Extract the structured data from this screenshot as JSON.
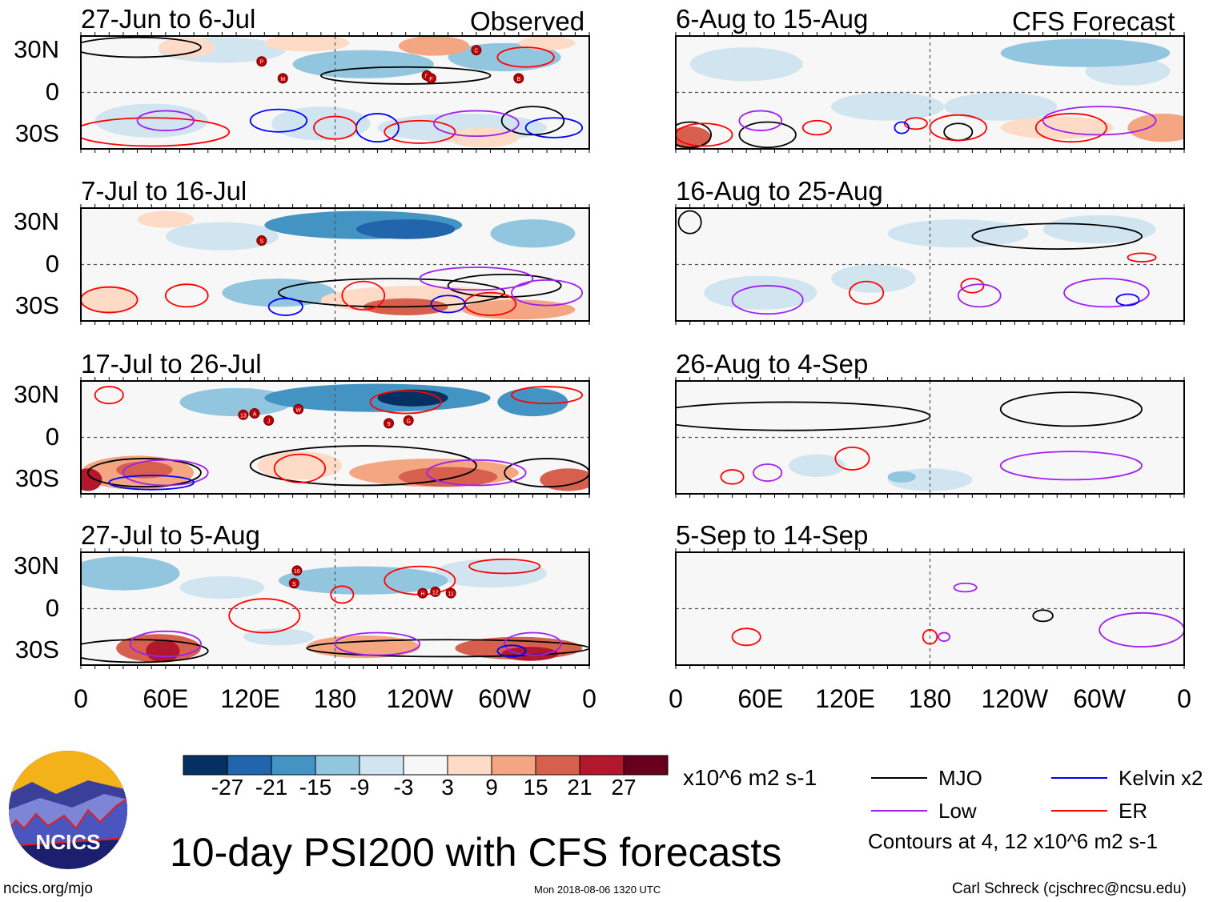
{
  "chart_data": {
    "type": "heatmap",
    "title": "10-day PSI200 with CFS forecasts",
    "units": "x10^6 m2 s-1",
    "contour_note": "Contours at 4, 12 x10^6 m2 s-1",
    "observed_label": "Observed",
    "forecast_label": "CFS Forecast",
    "lat_ticks": [
      "30N",
      "0",
      "30S"
    ],
    "lon_ticks": [
      "0",
      "60E",
      "120E",
      "180",
      "120W",
      "60W",
      "0"
    ],
    "lat_range": [
      -40,
      40
    ],
    "lon_range": [
      0,
      360
    ],
    "colorbar": {
      "levels": [
        "-27",
        "-21",
        "-15",
        "-9",
        "-3",
        "3",
        "9",
        "15",
        "21",
        "27"
      ],
      "colors": [
        "#053061",
        "#2166ac",
        "#4393c3",
        "#92c5de",
        "#d1e5f0",
        "#f7f7f7",
        "#fddbc7",
        "#f4a582",
        "#d6604d",
        "#b2182b",
        "#67001f"
      ]
    },
    "legend": [
      {
        "name": "MJO",
        "color": "#000000"
      },
      {
        "name": "Kelvin x2",
        "color": "#0000ff"
      },
      {
        "name": "Low",
        "color": "#a020f0"
      },
      {
        "name": "ER",
        "color": "#ff0000"
      }
    ],
    "panels": [
      {
        "period": "27-Jun to 6-Jul",
        "side": "left",
        "row": 0,
        "blobs": [
          [
            100,
            30,
            45,
            9,
            -3
          ],
          [
            200,
            20,
            50,
            10,
            -9
          ],
          [
            300,
            25,
            40,
            10,
            -9
          ],
          [
            270,
            -25,
            60,
            10,
            -3
          ],
          [
            50,
            -20,
            40,
            12,
            -3
          ],
          [
            170,
            -22,
            35,
            12,
            -3
          ],
          [
            30,
            30,
            25,
            8,
            3
          ],
          [
            75,
            32,
            20,
            7,
            9
          ],
          [
            160,
            35,
            30,
            6,
            9
          ],
          [
            250,
            33,
            25,
            7,
            15
          ],
          [
            330,
            35,
            20,
            5,
            9
          ],
          [
            285,
            -32,
            25,
            7,
            9
          ],
          [
            120,
            -5,
            20,
            8,
            3
          ]
        ],
        "contours": [
          [
            40,
            32,
            45,
            7,
            "MJO"
          ],
          [
            230,
            12,
            60,
            6,
            "MJO"
          ],
          [
            320,
            -20,
            22,
            10,
            "MJO"
          ],
          [
            140,
            -20,
            20,
            8,
            "Kelvin"
          ],
          [
            210,
            -25,
            15,
            10,
            "Kelvin"
          ],
          [
            335,
            -25,
            20,
            7,
            "Kelvin"
          ],
          [
            50,
            -28,
            55,
            10,
            "ER"
          ],
          [
            180,
            -25,
            15,
            8,
            "ER"
          ],
          [
            240,
            -28,
            25,
            8,
            "ER"
          ],
          [
            315,
            25,
            20,
            7,
            "ER"
          ],
          [
            60,
            -20,
            20,
            7,
            "Low"
          ],
          [
            280,
            -22,
            30,
            9,
            "Low"
          ]
        ],
        "storms": [
          [
            128,
            22,
            "P"
          ],
          [
            143,
            10,
            "M"
          ],
          [
            245,
            12,
            "E"
          ],
          [
            248,
            10,
            "F"
          ],
          [
            280,
            30,
            "C"
          ],
          [
            310,
            10,
            "B"
          ]
        ]
      },
      {
        "period": "7-Jul to 16-Jul",
        "side": "left",
        "row": 1,
        "blobs": [
          [
            200,
            28,
            70,
            10,
            -15
          ],
          [
            230,
            25,
            35,
            7,
            -21
          ],
          [
            320,
            22,
            30,
            10,
            -9
          ],
          [
            100,
            20,
            40,
            10,
            -3
          ],
          [
            140,
            -20,
            40,
            10,
            -9
          ],
          [
            240,
            -25,
            70,
            10,
            9
          ],
          [
            230,
            -30,
            30,
            6,
            21
          ],
          [
            310,
            -32,
            40,
            7,
            15
          ],
          [
            20,
            -25,
            20,
            10,
            9
          ],
          [
            60,
            32,
            20,
            6,
            9
          ]
        ],
        "contours": [
          [
            220,
            -20,
            80,
            10,
            "MJO"
          ],
          [
            300,
            -15,
            40,
            8,
            "MJO"
          ],
          [
            20,
            -25,
            20,
            9,
            "ER"
          ],
          [
            75,
            -22,
            15,
            8,
            "ER"
          ],
          [
            200,
            -22,
            15,
            10,
            "ER"
          ],
          [
            290,
            -28,
            18,
            8,
            "ER"
          ],
          [
            145,
            -30,
            12,
            6,
            "Kelvin"
          ],
          [
            260,
            -28,
            12,
            6,
            "Kelvin"
          ],
          [
            280,
            -10,
            40,
            8,
            "Low"
          ],
          [
            330,
            -20,
            25,
            9,
            "Low"
          ]
        ],
        "storms": [
          [
            128,
            17,
            "S"
          ]
        ]
      },
      {
        "period": "17-Jul to 26-Jul",
        "side": "left",
        "row": 2,
        "blobs": [
          [
            210,
            28,
            80,
            10,
            -15
          ],
          [
            235,
            28,
            25,
            6,
            -27
          ],
          [
            320,
            25,
            25,
            10,
            -15
          ],
          [
            110,
            25,
            40,
            10,
            -9
          ],
          [
            40,
            -25,
            40,
            12,
            15
          ],
          [
            45,
            -23,
            20,
            6,
            21
          ],
          [
            155,
            -20,
            30,
            10,
            9
          ],
          [
            250,
            -25,
            60,
            10,
            15
          ],
          [
            260,
            -28,
            35,
            7,
            21
          ],
          [
            345,
            -30,
            20,
            8,
            21
          ],
          [
            5,
            -30,
            10,
            8,
            27
          ]
        ],
        "contours": [
          [
            45,
            -25,
            40,
            10,
            "MJO"
          ],
          [
            200,
            -20,
            80,
            14,
            "MJO"
          ],
          [
            330,
            -25,
            30,
            10,
            "MJO"
          ],
          [
            20,
            30,
            10,
            6,
            "ER"
          ],
          [
            155,
            -22,
            18,
            10,
            "ER"
          ],
          [
            230,
            25,
            25,
            8,
            "ER"
          ],
          [
            330,
            30,
            25,
            6,
            "ER"
          ],
          [
            60,
            -25,
            30,
            9,
            "Low"
          ],
          [
            280,
            -25,
            35,
            9,
            "Low"
          ],
          [
            50,
            -32,
            30,
            5,
            "Kelvin"
          ]
        ],
        "storms": [
          [
            115,
            16,
            "13"
          ],
          [
            123,
            17,
            "A"
          ],
          [
            133,
            12,
            "J"
          ],
          [
            154,
            20,
            "W"
          ],
          [
            218,
            10,
            "9"
          ],
          [
            232,
            12,
            "G"
          ]
        ]
      },
      {
        "period": "27-Jul to 5-Aug",
        "side": "left",
        "row": 3,
        "blobs": [
          [
            30,
            25,
            40,
            12,
            -9
          ],
          [
            200,
            20,
            60,
            10,
            -9
          ],
          [
            290,
            25,
            40,
            10,
            -3
          ],
          [
            100,
            15,
            30,
            8,
            -3
          ],
          [
            55,
            -28,
            30,
            10,
            21
          ],
          [
            58,
            -30,
            12,
            8,
            27
          ],
          [
            200,
            -27,
            40,
            8,
            15
          ],
          [
            310,
            -28,
            45,
            8,
            21
          ],
          [
            318,
            -32,
            20,
            5,
            27
          ],
          [
            140,
            -20,
            25,
            6,
            -3
          ]
        ],
        "contours": [
          [
            40,
            -30,
            50,
            8,
            "MJO"
          ],
          [
            260,
            -28,
            100,
            6,
            "MJO"
          ],
          [
            240,
            20,
            25,
            10,
            "ER"
          ],
          [
            300,
            30,
            25,
            5,
            "ER"
          ],
          [
            130,
            -5,
            25,
            12,
            "ER"
          ],
          [
            185,
            10,
            8,
            6,
            "ER"
          ],
          [
            60,
            -25,
            25,
            9,
            "Low"
          ],
          [
            210,
            -25,
            30,
            8,
            "Low"
          ],
          [
            320,
            -25,
            20,
            8,
            "Low"
          ],
          [
            305,
            -30,
            10,
            4,
            "Kelvin"
          ]
        ],
        "storms": [
          [
            153,
            27,
            "16"
          ],
          [
            151,
            18,
            "S"
          ],
          [
            242,
            11,
            "H"
          ],
          [
            251,
            12,
            "12"
          ],
          [
            262,
            11,
            "11"
          ]
        ]
      },
      {
        "period": "6-Aug to 15-Aug",
        "side": "right",
        "row": 0,
        "blobs": [
          [
            50,
            20,
            40,
            12,
            -3
          ],
          [
            150,
            -10,
            40,
            10,
            -3
          ],
          [
            290,
            28,
            60,
            10,
            -9
          ],
          [
            320,
            15,
            30,
            10,
            -3
          ],
          [
            230,
            -10,
            40,
            10,
            -3
          ],
          [
            10,
            -32,
            15,
            8,
            21
          ],
          [
            270,
            -25,
            40,
            8,
            9
          ],
          [
            345,
            -25,
            25,
            10,
            15
          ],
          [
            200,
            -28,
            30,
            8,
            3
          ],
          [
            110,
            -25,
            20,
            8,
            3
          ]
        ],
        "contours": [
          [
            10,
            -30,
            15,
            9,
            "MJO"
          ],
          [
            65,
            -30,
            20,
            9,
            "MJO"
          ],
          [
            200,
            -28,
            10,
            6,
            "MJO"
          ],
          [
            20,
            -30,
            20,
            8,
            "ER"
          ],
          [
            100,
            -25,
            10,
            5,
            "ER"
          ],
          [
            170,
            -22,
            8,
            4,
            "ER"
          ],
          [
            200,
            -25,
            20,
            9,
            "ER"
          ],
          [
            280,
            -25,
            25,
            10,
            "ER"
          ],
          [
            60,
            -20,
            15,
            7,
            "Low"
          ],
          [
            300,
            -20,
            40,
            10,
            "Low"
          ],
          [
            160,
            -25,
            5,
            4,
            "Kelvin"
          ]
        ],
        "storms": []
      },
      {
        "period": "16-Aug to 25-Aug",
        "side": "right",
        "row": 1,
        "blobs": [
          [
            80,
            25,
            30,
            10,
            3
          ],
          [
            200,
            22,
            50,
            10,
            -3
          ],
          [
            300,
            25,
            40,
            10,
            -3
          ],
          [
            60,
            -20,
            40,
            12,
            -3
          ],
          [
            140,
            -10,
            30,
            10,
            -3
          ],
          [
            210,
            -15,
            30,
            8,
            3
          ],
          [
            260,
            -12,
            25,
            8,
            3
          ]
        ],
        "contours": [
          [
            10,
            30,
            8,
            8,
            "MJO"
          ],
          [
            270,
            20,
            60,
            9,
            "MJO"
          ],
          [
            135,
            -20,
            12,
            8,
            "ER"
          ],
          [
            210,
            -15,
            8,
            5,
            "ER"
          ],
          [
            330,
            5,
            10,
            3,
            "ER"
          ],
          [
            65,
            -25,
            25,
            10,
            "Low"
          ],
          [
            215,
            -22,
            15,
            8,
            "Low"
          ],
          [
            305,
            -20,
            30,
            10,
            "Low"
          ],
          [
            320,
            -25,
            8,
            4,
            "Kelvin"
          ]
        ],
        "storms": []
      },
      {
        "period": "26-Aug to 4-Sep",
        "side": "right",
        "row": 2,
        "blobs": [
          [
            50,
            25,
            50,
            12,
            3
          ],
          [
            150,
            20,
            40,
            10,
            3
          ],
          [
            290,
            22,
            40,
            10,
            3
          ],
          [
            180,
            -30,
            30,
            8,
            -3
          ],
          [
            160,
            -28,
            10,
            4,
            -9
          ],
          [
            100,
            -20,
            20,
            8,
            -3
          ],
          [
            250,
            -20,
            40,
            8,
            3
          ]
        ],
        "contours": [
          [
            80,
            15,
            100,
            10,
            "MJO"
          ],
          [
            280,
            20,
            50,
            12,
            "MJO"
          ],
          [
            40,
            -28,
            8,
            5,
            "ER"
          ],
          [
            125,
            -15,
            12,
            8,
            "ER"
          ],
          [
            65,
            -25,
            10,
            6,
            "Low"
          ],
          [
            280,
            -20,
            50,
            10,
            "Low"
          ]
        ],
        "storms": []
      },
      {
        "period": "5-Sep to 14-Sep",
        "side": "right",
        "row": 3,
        "blobs": [
          [
            170,
            -5,
            80,
            12,
            3
          ],
          [
            40,
            -25,
            30,
            10,
            3
          ],
          [
            230,
            10,
            25,
            8,
            3
          ],
          [
            330,
            -20,
            30,
            10,
            3
          ]
        ],
        "contours": [
          [
            260,
            -5,
            7,
            4,
            "MJO"
          ],
          [
            50,
            -20,
            10,
            6,
            "ER"
          ],
          [
            180,
            -20,
            5,
            5,
            "ER"
          ],
          [
            330,
            -15,
            30,
            12,
            "Low"
          ],
          [
            205,
            15,
            8,
            3,
            "Low"
          ],
          [
            190,
            -20,
            4,
            3,
            "Low"
          ]
        ],
        "storms": []
      }
    ]
  },
  "footer": {
    "site": "ncics.org/mjo",
    "timestamp": "Mon 2018-08-06 1320 UTC",
    "author": "Carl Schreck (cjschrec@ncsu.edu)",
    "logo_text": "NCICS"
  }
}
